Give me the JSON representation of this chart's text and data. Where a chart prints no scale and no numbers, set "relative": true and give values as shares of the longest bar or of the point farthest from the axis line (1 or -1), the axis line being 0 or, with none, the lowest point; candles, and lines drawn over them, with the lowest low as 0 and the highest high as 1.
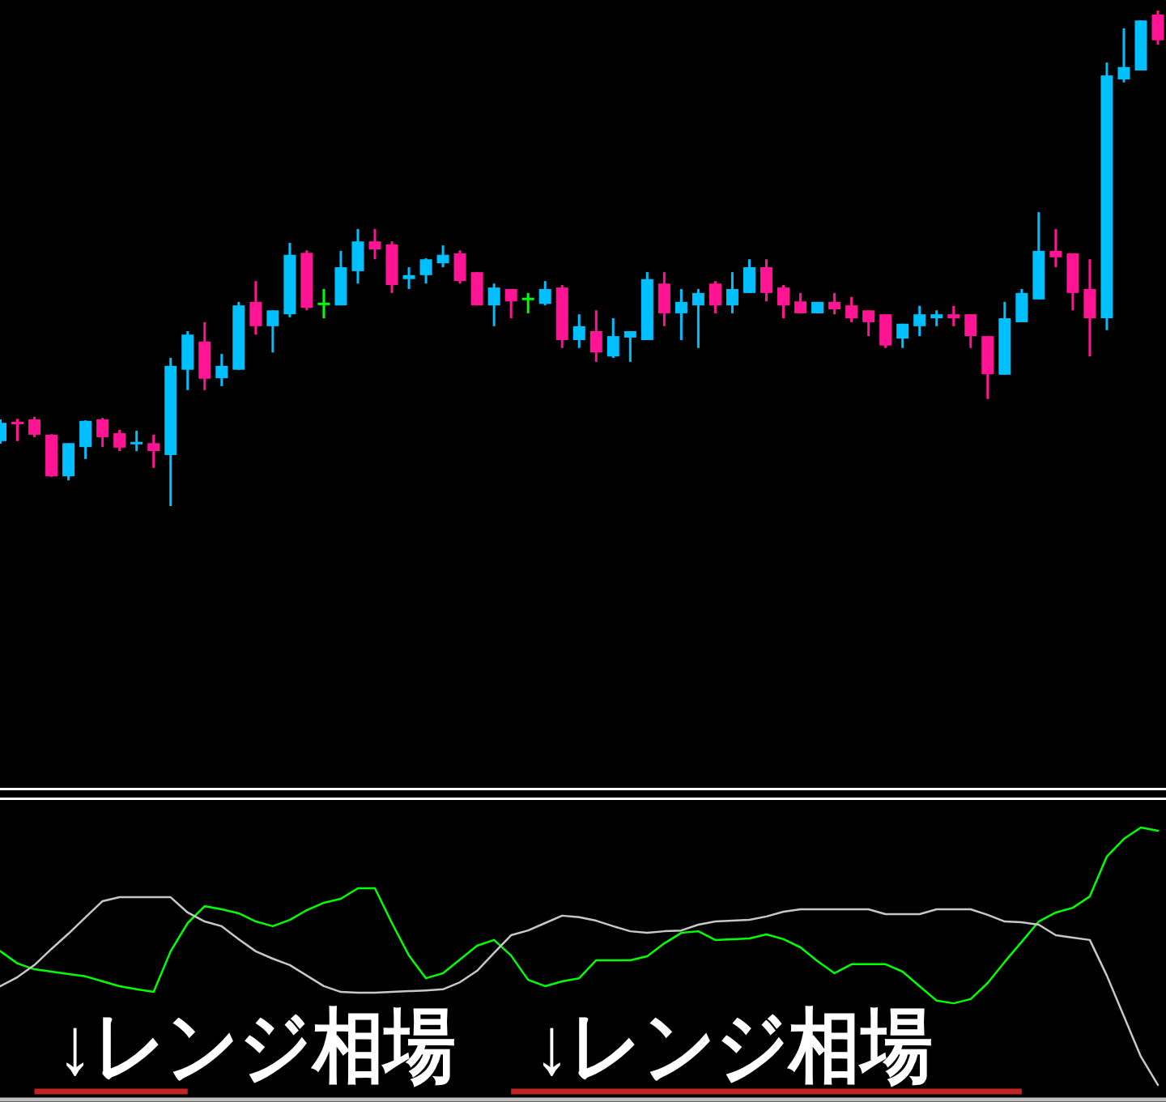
{
  "chart_data": [
    {
      "type": "candlestick",
      "relative": true,
      "categories": [
        null,
        null,
        null,
        null,
        null,
        null,
        null,
        null,
        null,
        null,
        null,
        null,
        null,
        null,
        null,
        null,
        null,
        null,
        null,
        null,
        null,
        null,
        null,
        null,
        null,
        null,
        null,
        null,
        null,
        null,
        null,
        null,
        null,
        null,
        null,
        null,
        null,
        null,
        null,
        null,
        null,
        null,
        null,
        null,
        null,
        null,
        null,
        null,
        null,
        null,
        null,
        null,
        null,
        null,
        null,
        null,
        null,
        null,
        null,
        null,
        null,
        null,
        null,
        null,
        null,
        null,
        null,
        null,
        null
      ],
      "ohlc": [
        [
          0.131,
          0.175,
          0.126,
          0.168
        ],
        [
          0.17,
          0.176,
          0.131,
          0.165
        ],
        [
          0.175,
          0.18,
          0.139,
          0.144
        ],
        [
          0.144,
          0.145,
          0.059,
          0.06
        ],
        [
          0.06,
          0.127,
          0.052,
          0.127
        ],
        [
          0.119,
          0.173,
          0.095,
          0.172
        ],
        [
          0.175,
          0.178,
          0.119,
          0.139
        ],
        [
          0.147,
          0.154,
          0.111,
          0.118
        ],
        [
          0.123,
          0.152,
          0.111,
          0.127
        ],
        [
          0.127,
          0.144,
          0.077,
          0.111
        ],
        [
          0.103,
          0.299,
          0,
          0.283
        ],
        [
          0.275,
          0.353,
          0.234,
          0.346
        ],
        [
          0.332,
          0.371,
          0.234,
          0.257
        ],
        [
          0.258,
          0.307,
          0.242,
          0.283
        ],
        [
          0.275,
          0.412,
          0.275,
          0.405
        ],
        [
          0.412,
          0.454,
          0.346,
          0.363
        ],
        [
          0.363,
          0.395,
          0.31,
          0.395
        ],
        [
          0.387,
          0.531,
          0.381,
          0.507
        ],
        [
          0.511,
          0.516,
          0.395,
          0.4
        ],
        [
          0.408,
          0.438,
          0.379,
          0.408
        ],
        [
          0.405,
          0.515,
          0.405,
          0.482
        ],
        [
          0.474,
          0.559,
          0.449,
          0.534
        ],
        [
          0.534,
          0.559,
          0.498,
          0.518
        ],
        [
          0.528,
          0.534,
          0.43,
          0.446
        ],
        [
          0.458,
          0.482,
          0.438,
          0.466
        ],
        [
          0.466,
          0.5,
          0.449,
          0.498
        ],
        [
          0.49,
          0.526,
          0.482,
          0.507
        ],
        [
          0.51,
          0.516,
          0.449,
          0.454
        ],
        [
          0.472,
          0.472,
          0.405,
          0.405
        ],
        [
          0.405,
          0.449,
          0.363,
          0.441
        ],
        [
          0.438,
          0.438,
          0.379,
          0.413
        ],
        [
          0.418,
          0.43,
          0.389,
          0.418
        ],
        [
          0.408,
          0.454,
          0.405,
          0.438
        ],
        [
          0.441,
          0.446,
          0.319,
          0.335
        ],
        [
          0.335,
          0.387,
          0.319,
          0.363
        ],
        [
          0.353,
          0.395,
          0.291,
          0.31
        ],
        [
          0.302,
          0.379,
          0.299,
          0.343
        ],
        [
          0.34,
          0.353,
          0.291,
          0.353
        ],
        [
          0.335,
          0.472,
          0.335,
          0.458
        ],
        [
          0.449,
          0.472,
          0.363,
          0.389
        ],
        [
          0.389,
          0.438,
          0.335,
          0.412
        ],
        [
          0.405,
          0.438,
          0.319,
          0.43
        ],
        [
          0.449,
          0.454,
          0.389,
          0.405
        ],
        [
          0.405,
          0.472,
          0.389,
          0.438
        ],
        [
          0.43,
          0.498,
          0.43,
          0.482
        ],
        [
          0.482,
          0.498,
          0.413,
          0.43
        ],
        [
          0.441,
          0.446,
          0.379,
          0.405
        ],
        [
          0.413,
          0.43,
          0.389,
          0.389
        ],
        [
          0.389,
          0.412,
          0.389,
          0.412
        ],
        [
          0.412,
          0.43,
          0.387,
          0.397
        ],
        [
          0.405,
          0.422,
          0.371,
          0.379
        ],
        [
          0.395,
          0.395,
          0.343,
          0.371
        ],
        [
          0.387,
          0.387,
          0.319,
          0.324
        ],
        [
          0.338,
          0.368,
          0.319,
          0.368
        ],
        [
          0.363,
          0.404,
          0.343,
          0.387
        ],
        [
          0.379,
          0.395,
          0.363,
          0.387
        ],
        [
          0.387,
          0.404,
          0.363,
          0.379
        ],
        [
          0.387,
          0.387,
          0.319,
          0.343
        ],
        [
          0.343,
          0.343,
          0.216,
          0.266
        ],
        [
          0.265,
          0.412,
          0.265,
          0.379
        ],
        [
          0.371,
          0.438,
          0.371,
          0.43
        ],
        [
          0.417,
          0.593,
          0.417,
          0.515
        ],
        [
          0.515,
          0.559,
          0.482,
          0.502
        ],
        [
          0.51,
          0.51,
          0.395,
          0.43
        ],
        [
          0.438,
          0.498,
          0.302,
          0.379
        ],
        [
          0.379,
          0.895,
          0.355,
          0.869
        ],
        [
          0.861,
          0.964,
          0.855,
          0.886
        ],
        [
          0.879,
          0.98,
          0.879,
          0.98
        ],
        [
          0.992,
          1.0,
          0.931,
          0.94
        ]
      ],
      "colors": [
        "#00bfff",
        "#ff1493",
        "#ff1493",
        "#ff1493",
        "#00bfff",
        "#00bfff",
        "#ff1493",
        "#ff1493",
        "#00bfff",
        "#ff1493",
        "#00bfff",
        "#00bfff",
        "#ff1493",
        "#00bfff",
        "#00bfff",
        "#ff1493",
        "#00bfff",
        "#00bfff",
        "#ff1493",
        "#00ff00",
        "#00bfff",
        "#00bfff",
        "#ff1493",
        "#ff1493",
        "#00bfff",
        "#00bfff",
        "#00bfff",
        "#ff1493",
        "#ff1493",
        "#00bfff",
        "#ff1493",
        "#00ff00",
        "#00bfff",
        "#ff1493",
        "#00bfff",
        "#ff1493",
        "#00bfff",
        "#00bfff",
        "#00bfff",
        "#ff1493",
        "#00bfff",
        "#00bfff",
        "#ff1493",
        "#00bfff",
        "#00bfff",
        "#ff1493",
        "#ff1493",
        "#ff1493",
        "#00bfff",
        "#ff1493",
        "#ff1493",
        "#ff1493",
        "#ff1493",
        "#00bfff",
        "#00bfff",
        "#00bfff",
        "#ff1493",
        "#ff1493",
        "#ff1493",
        "#00bfff",
        "#00bfff",
        "#00bfff",
        "#ff1493",
        "#ff1493",
        "#ff1493",
        "#00bfff",
        "#00bfff",
        "#00bfff",
        "#ff1493"
      ]
    },
    {
      "type": "line",
      "relative": true,
      "categories": [
        null,
        null,
        null,
        null,
        null,
        null,
        null,
        null,
        null,
        null,
        null,
        null,
        null,
        null,
        null,
        null,
        null,
        null,
        null,
        null,
        null,
        null,
        null,
        null,
        null,
        null,
        null,
        null,
        null,
        null,
        null,
        null,
        null,
        null,
        null,
        null,
        null,
        null,
        null,
        null,
        null,
        null,
        null,
        null,
        null,
        null,
        null,
        null,
        null,
        null,
        null,
        null,
        null,
        null,
        null,
        null,
        null,
        null,
        null,
        null,
        null,
        null,
        null,
        null,
        null,
        null,
        null,
        null,
        null
      ],
      "series": [
        {
          "color": "#00ff00",
          "values": [
            0.531,
            0.485,
            0.463,
            0.454,
            0.445,
            0.436,
            0.417,
            0.399,
            0.387,
            0.377,
            0.531,
            0.638,
            0.702,
            0.69,
            0.675,
            0.644,
            0.626,
            0.65,
            0.687,
            0.715,
            0.73,
            0.77,
            0.77,
            0.638,
            0.515,
            0.429,
            0.448,
            0.5,
            0.552,
            0.574,
            0.515,
            0.423,
            0.399,
            0.417,
            0.429,
            0.497,
            0.497,
            0.497,
            0.512,
            0.561,
            0.601,
            0.607,
            0.574,
            0.577,
            0.58,
            0.595,
            0.577,
            0.546,
            0.494,
            0.448,
            0.482,
            0.482,
            0.482,
            0.454,
            0.399,
            0.344,
            0.334,
            0.35,
            0.411,
            0.491,
            0.567,
            0.644,
            0.678,
            0.696,
            0.739,
            0.89,
            0.957,
            1.0,
            0.988
          ]
        },
        {
          "color": "#c8c8c8",
          "values": [
            0.399,
            0.433,
            0.479,
            0.54,
            0.598,
            0.66,
            0.721,
            0.736,
            0.736,
            0.736,
            0.736,
            0.678,
            0.644,
            0.626,
            0.577,
            0.531,
            0.503,
            0.479,
            0.439,
            0.399,
            0.377,
            0.374,
            0.374,
            0.377,
            0.38,
            0.383,
            0.387,
            0.414,
            0.457,
            0.525,
            0.592,
            0.61,
            0.638,
            0.666,
            0.66,
            0.647,
            0.626,
            0.607,
            0.601,
            0.607,
            0.61,
            0.632,
            0.644,
            0.647,
            0.65,
            0.663,
            0.681,
            0.69,
            0.69,
            0.69,
            0.69,
            0.69,
            0.672,
            0.672,
            0.672,
            0.69,
            0.69,
            0.69,
            0.669,
            0.644,
            0.641,
            0.632,
            0.592,
            0.583,
            0.574,
            0.439,
            0.285,
            0.132,
            0.025
          ]
        },
        {
          "color": "#c42323",
          "values": [
            null,
            null,
            0,
            0,
            0,
            0,
            0,
            0,
            0,
            0,
            0,
            0,
            null,
            null,
            null,
            null,
            null,
            null,
            null,
            null,
            null,
            null,
            null,
            null,
            null,
            null,
            null,
            null,
            null,
            null,
            0,
            0,
            0,
            0,
            0,
            0,
            0,
            0,
            0,
            0,
            0,
            0,
            0,
            0,
            0,
            0,
            0,
            0,
            0,
            0,
            0,
            0,
            0,
            0,
            0,
            0,
            0,
            0,
            0,
            0,
            0,
            null,
            null,
            null,
            null,
            null,
            null,
            null,
            null
          ]
        }
      ],
      "annotations": [
        "↓レンジ相場",
        "↓レンジ相場"
      ]
    }
  ]
}
